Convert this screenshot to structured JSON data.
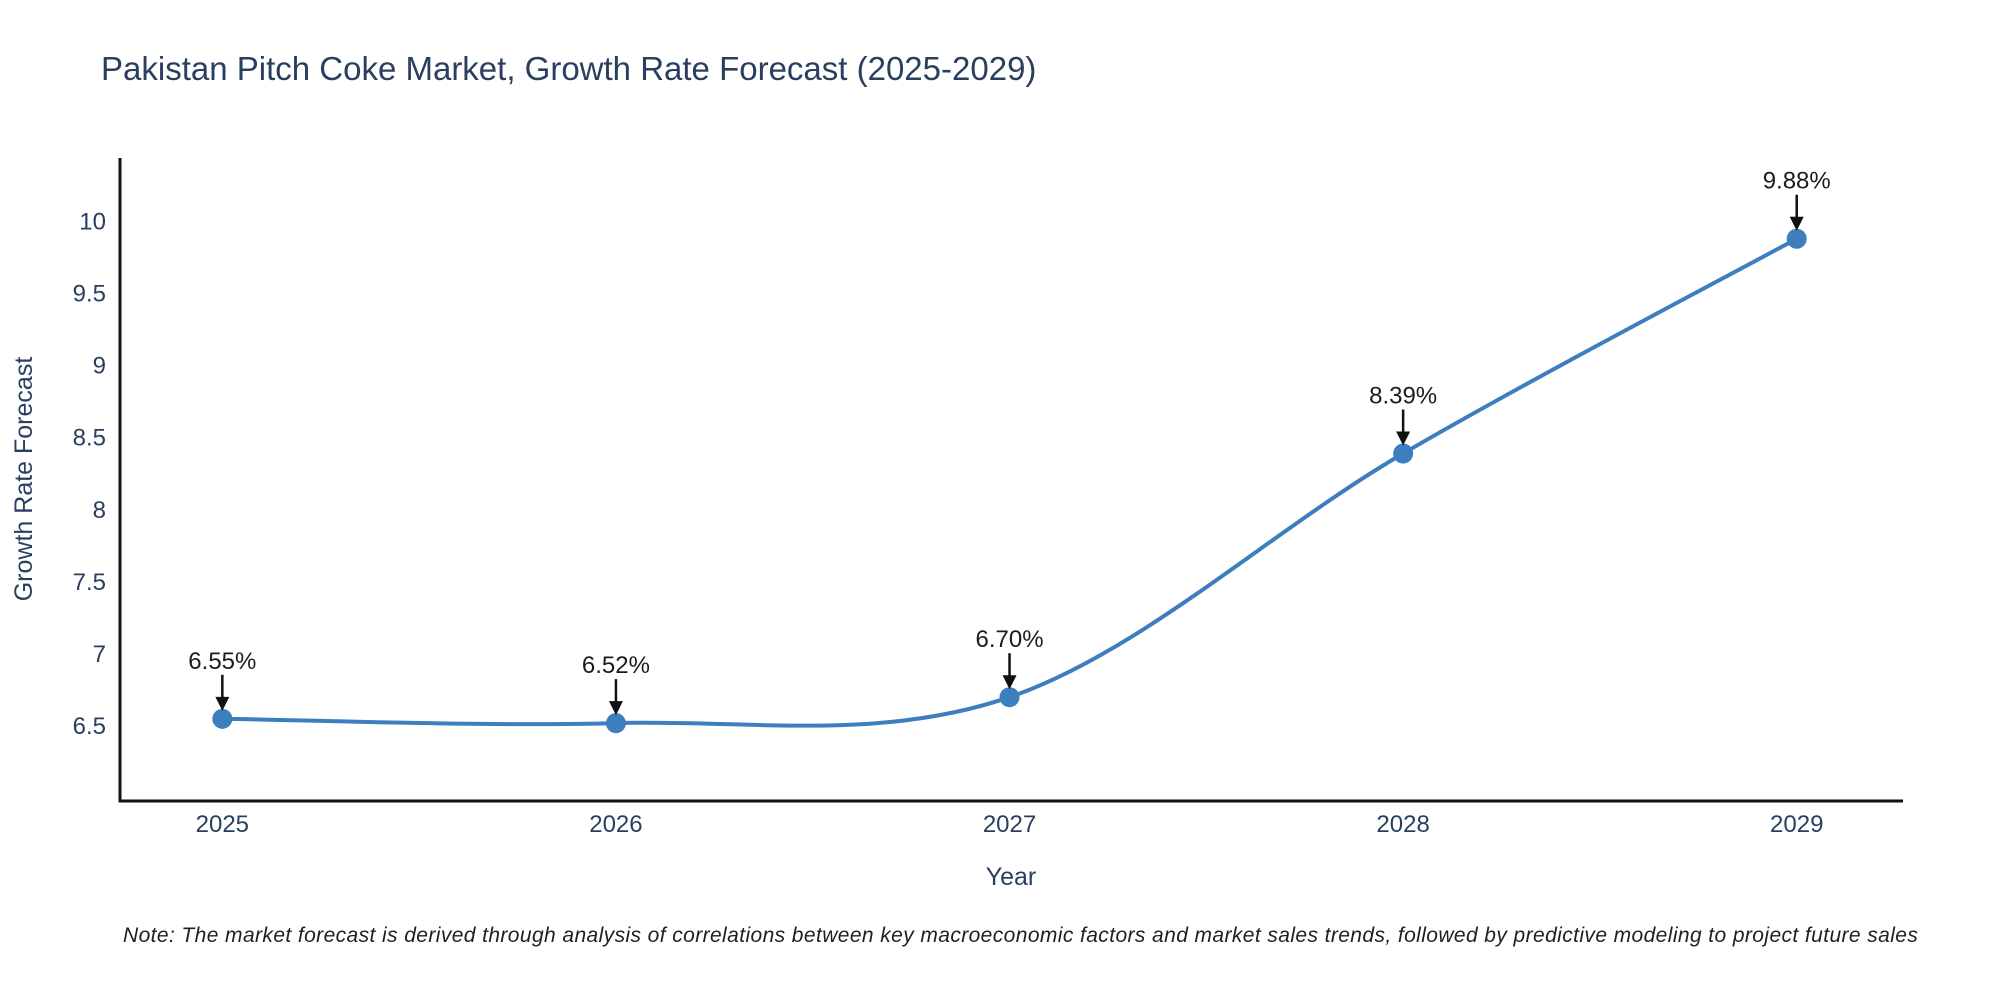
{
  "page": {
    "background": "#ffffff"
  },
  "chart_data": {
    "type": "line",
    "title": "Pakistan Pitch Coke Market, Growth Rate Forecast (2025-2029)",
    "xlabel": "Year",
    "ylabel": "Growth Rate Forecast",
    "x": [
      2025,
      2026,
      2027,
      2028,
      2029
    ],
    "y": [
      6.55,
      6.52,
      6.7,
      8.39,
      9.88
    ],
    "point_labels": [
      "6.55%",
      "6.52%",
      "6.70%",
      "8.39%",
      "9.88%"
    ],
    "xtick_labels": [
      "2025",
      "2026",
      "2027",
      "2028",
      "2029"
    ],
    "yticks": [
      6.5,
      7,
      7.5,
      8,
      8.5,
      9,
      9.5,
      10
    ],
    "ytick_labels": [
      "6.5",
      "7",
      "7.5",
      "8",
      "8.5",
      "9",
      "9.5",
      "10"
    ],
    "xlim": [
      2024.74,
      2029.27
    ],
    "ylim": [
      5.98,
      10.44
    ],
    "line_shape": "spline",
    "grid": false,
    "legend_position": "none",
    "annotations_have_arrows": true,
    "colors": {
      "line": "#3d7ebf",
      "marker": "#3d7ebf",
      "axis": "#111111",
      "tick_text": "#2a3f5f",
      "annotation_text": "#1c1c1c",
      "arrow": "#111111"
    }
  },
  "note": {
    "text": "Note: The market forecast is derived through analysis of correlations between key macroeconomic factors and market sales trends, followed by predictive modeling to project future sales"
  }
}
